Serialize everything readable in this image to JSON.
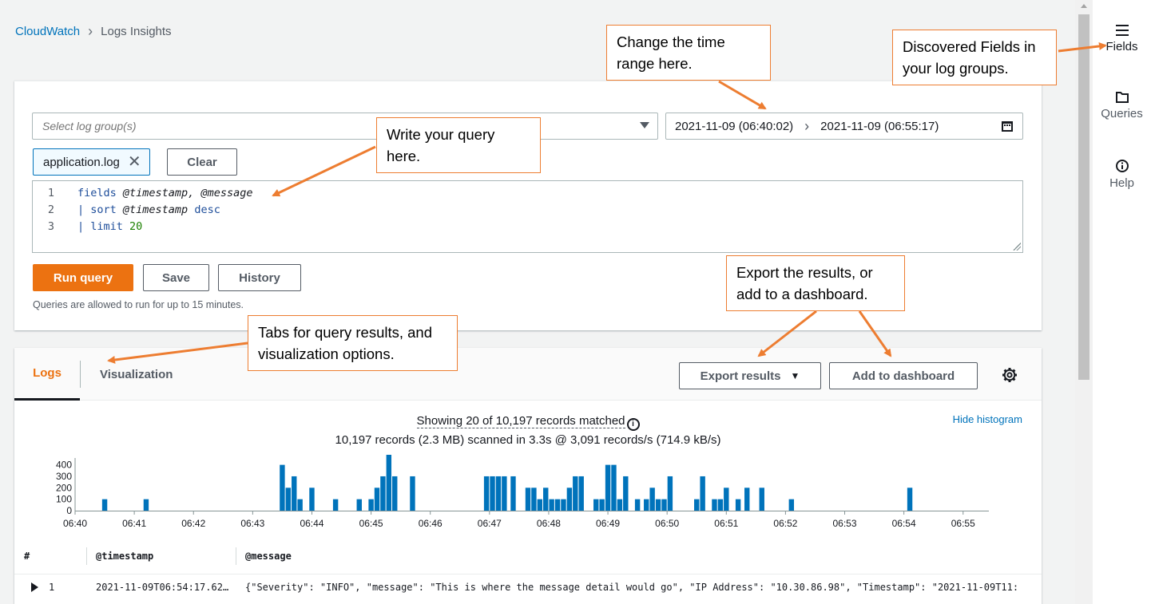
{
  "breadcrumb": {
    "root": "CloudWatch",
    "current": "Logs Insights"
  },
  "query": {
    "log_group_placeholder": "Select log group(s)",
    "time_start": "2021-11-09 (06:40:02)",
    "time_end": "2021-11-09 (06:55:17)",
    "selected_group": "application.log",
    "clear_label": "Clear",
    "lines": [
      {
        "num": "1",
        "parts": [
          [
            "kw",
            "fields "
          ],
          [
            "fld",
            "@timestamp, @message"
          ]
        ]
      },
      {
        "num": "2",
        "parts": [
          [
            "kw",
            "| sort "
          ],
          [
            "fld",
            "@timestamp "
          ],
          [
            "kw",
            "desc"
          ]
        ]
      },
      {
        "num": "3",
        "parts": [
          [
            "kw",
            "| limit "
          ],
          [
            "num",
            "20"
          ]
        ]
      }
    ],
    "run_label": "Run query",
    "save_label": "Save",
    "history_label": "History",
    "hint": "Queries are allowed to run for up to 15 minutes."
  },
  "results": {
    "tabs": [
      {
        "label": "Logs"
      },
      {
        "label": "Visualization"
      }
    ],
    "export_label": "Export results",
    "dashboard_label": "Add to dashboard",
    "showing": "Showing 20 of 10,197 records matched",
    "scanned": "10,197 records (2.3 MB) scanned in 3.3s @ 3,091 records/s (714.9 kB/s)",
    "hide_histogram": "Hide histogram",
    "columns": {
      "num": "#",
      "timestamp": "@timestamp",
      "message": "@message"
    },
    "rows": [
      {
        "num": "1",
        "timestamp": "2021-11-09T06:54:17.62…",
        "message": "{\"Severity\": \"INFO\", \"message\": \"This is where the message detail would go\", \"IP Address\": \"10.30.86.98\", \"Timestamp\": \"2021-11-09T11:"
      }
    ]
  },
  "chart_data": {
    "type": "bar",
    "y_ticks": [
      "0",
      "100",
      "200",
      "300",
      "400"
    ],
    "ylim": [
      0,
      460
    ],
    "x_ticks": [
      "06:40",
      "06:41",
      "06:42",
      "06:43",
      "06:44",
      "06:45",
      "06:46",
      "06:47",
      "06:48",
      "06:49",
      "06:50",
      "06:51",
      "06:52",
      "06:53",
      "06:54",
      "06:55"
    ],
    "x_range_minutes": [
      0,
      15.3
    ],
    "bar_color": "#0073bb",
    "points": [
      [
        0.5,
        100
      ],
      [
        1.2,
        100
      ],
      [
        3.5,
        400
      ],
      [
        3.6,
        200
      ],
      [
        3.7,
        300
      ],
      [
        3.8,
        100
      ],
      [
        4.0,
        200
      ],
      [
        4.4,
        100
      ],
      [
        4.8,
        100
      ],
      [
        5.0,
        100
      ],
      [
        5.1,
        200
      ],
      [
        5.2,
        300
      ],
      [
        5.3,
        500
      ],
      [
        5.4,
        300
      ],
      [
        5.7,
        300
      ],
      [
        6.95,
        300
      ],
      [
        7.05,
        300
      ],
      [
        7.15,
        300
      ],
      [
        7.25,
        300
      ],
      [
        7.4,
        300
      ],
      [
        7.65,
        200
      ],
      [
        7.75,
        200
      ],
      [
        7.85,
        100
      ],
      [
        7.95,
        200
      ],
      [
        8.05,
        100
      ],
      [
        8.15,
        100
      ],
      [
        8.25,
        100
      ],
      [
        8.35,
        200
      ],
      [
        8.45,
        300
      ],
      [
        8.55,
        300
      ],
      [
        8.8,
        100
      ],
      [
        8.9,
        100
      ],
      [
        9.0,
        400
      ],
      [
        9.1,
        400
      ],
      [
        9.2,
        100
      ],
      [
        9.3,
        300
      ],
      [
        9.5,
        100
      ],
      [
        9.65,
        100
      ],
      [
        9.75,
        200
      ],
      [
        9.85,
        100
      ],
      [
        9.95,
        100
      ],
      [
        10.05,
        300
      ],
      [
        10.5,
        100
      ],
      [
        10.6,
        300
      ],
      [
        10.8,
        100
      ],
      [
        10.9,
        100
      ],
      [
        11.0,
        200
      ],
      [
        11.2,
        100
      ],
      [
        11.35,
        200
      ],
      [
        11.6,
        200
      ],
      [
        12.1,
        100
      ],
      [
        14.1,
        200
      ]
    ]
  },
  "rail": [
    {
      "label": "Fields",
      "icon": "menu-icon"
    },
    {
      "label": "Queries",
      "icon": "folder-icon"
    },
    {
      "label": "Help",
      "icon": "info-icon"
    }
  ],
  "callouts": {
    "time": "Change the time range here.",
    "fields": "Discovered Fields in your log groups.",
    "query": "Write your query here.",
    "export": "Export the results, or add to a dashboard.",
    "tabs": "Tabs for query results, and visualization options."
  },
  "colors": {
    "accent": "#ec7211",
    "link": "#0073bb",
    "callout_border": "#ed7d31"
  }
}
